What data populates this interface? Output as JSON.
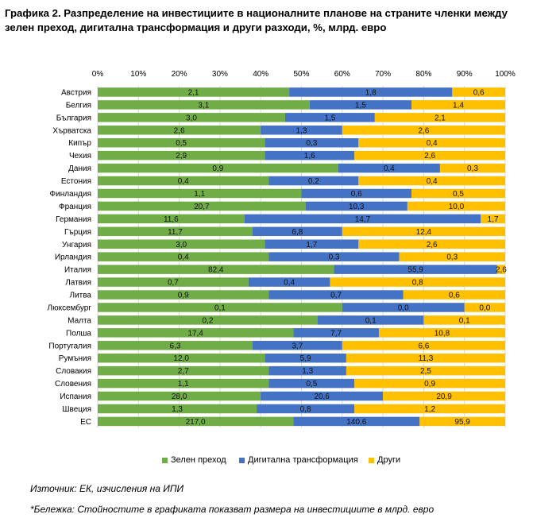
{
  "title": {
    "line1": "Графика 2. Разпределение на инвестициите в националните планове на страните членки между",
    "line2": "зелен преход, дигитална трансформация и други разходи, %, млрд. евро"
  },
  "source": "Източник: ЕК, изчисления на ИПИ",
  "note": "*Бележка: Стойностите в графиката показват размера на инвестициите в млрд. евро",
  "colors": {
    "green": "#70ad47",
    "blue": "#4472c4",
    "yellow": "#ffc000",
    "grid": "#d9d9d9"
  },
  "chart_data": {
    "type": "bar",
    "orientation": "horizontal",
    "stacked": "percent",
    "xlim": [
      0,
      100
    ],
    "x_ticks": [
      "0%",
      "10%",
      "20%",
      "30%",
      "40%",
      "50%",
      "60%",
      "70%",
      "80%",
      "90%",
      "100%"
    ],
    "grid": true,
    "legend": "bottom",
    "categories": [
      "Австрия",
      "Белгия",
      "България",
      "Хърватска",
      "Кипър",
      "Чехия",
      "Дания",
      "Естония",
      "Финландия",
      "Франция",
      "Германия",
      "Гърция",
      "Унгария",
      "Ирландия",
      "Италия",
      "Латвия",
      "Литва",
      "Люксембург",
      "Малта",
      "Полша",
      "Португалия",
      "Румъния",
      "Словакия",
      "Словения",
      "Испания",
      "Швеция",
      "ЕС"
    ],
    "series": [
      {
        "name": "Зелен преход",
        "color": "#70ad47",
        "values": [
          2.1,
          3.1,
          3.0,
          2.6,
          0.5,
          2.9,
          0.9,
          0.4,
          1.1,
          20.7,
          11.6,
          11.7,
          3.0,
          0.4,
          82.4,
          0.7,
          0.9,
          0.1,
          0.2,
          17.4,
          6.3,
          12.0,
          2.7,
          1.1,
          28.0,
          1.3,
          217.0
        ],
        "labels": [
          "2,1",
          "3,1",
          "3,0",
          "2,6",
          "0,5",
          "2,9",
          "0,9",
          "0,4",
          "1,1",
          "20,7",
          "11,6",
          "11,7",
          "3,0",
          "0,4",
          "82,4",
          "0,7",
          "0,9",
          "0,1",
          "0,2",
          "17,4",
          "6,3",
          "12,0",
          "2,7",
          "1,1",
          "28,0",
          "1,3",
          "217,0"
        ],
        "percent": [
          47,
          52,
          46,
          40,
          41,
          41,
          59,
          42,
          50,
          51,
          36,
          38,
          41,
          42,
          58,
          37,
          42,
          60,
          54,
          48,
          38,
          41,
          42,
          42,
          40,
          39,
          48
        ]
      },
      {
        "name": "Дигитална трансформация",
        "color": "#4472c4",
        "values": [
          1.8,
          1.5,
          1.5,
          1.3,
          0.3,
          1.6,
          0.4,
          0.2,
          0.6,
          10.3,
          14.7,
          6.8,
          1.7,
          0.3,
          55.9,
          0.4,
          0.7,
          0.0,
          0.1,
          7.7,
          3.7,
          5.9,
          1.3,
          0.5,
          20.6,
          0.8,
          140.6
        ],
        "labels": [
          "1,8",
          "1,5",
          "1,5",
          "1,3",
          "0,3",
          "1,6",
          "0,4",
          "0,2",
          "0,6",
          "10,3",
          "14,7",
          "6,8",
          "1,7",
          "0,3",
          "55,9",
          "0,4",
          "0,7",
          "0,0",
          "0,1",
          "7,7",
          "3,7",
          "5,9",
          "1,3",
          "0,5",
          "20,6",
          "0,8",
          "140,6"
        ],
        "percent": [
          40,
          25,
          22,
          20,
          23,
          22,
          25,
          22,
          27,
          25,
          58,
          22,
          23,
          32,
          40,
          20,
          33,
          30,
          26,
          21,
          22,
          20,
          19,
          21,
          30,
          24,
          31
        ]
      },
      {
        "name": "Други",
        "color": "#ffc000",
        "values": [
          0.6,
          1.4,
          2.1,
          2.6,
          0.4,
          2.6,
          0.3,
          0.4,
          0.5,
          10.0,
          1.7,
          12.4,
          2.6,
          0.3,
          2.6,
          0.8,
          0.6,
          0.0,
          0.1,
          10.8,
          6.6,
          11.3,
          2.5,
          0.9,
          20.9,
          1.2,
          95.9
        ],
        "labels": [
          "0,6",
          "1,4",
          "2,1",
          "2,6",
          "0,4",
          "2,6",
          "0,3",
          "0,4",
          "0,5",
          "10,0",
          "1,7",
          "12,4",
          "2,6",
          "0,3",
          "2,6",
          "0,8",
          "0,6",
          "0,0",
          "0,1",
          "10,8",
          "6,6",
          "11,3",
          "2,5",
          "0,9",
          "20,9",
          "1,2",
          "95,9"
        ],
        "percent": [
          13,
          23,
          32,
          40,
          36,
          37,
          16,
          36,
          23,
          24,
          6,
          40,
          36,
          26,
          2,
          43,
          25,
          10,
          20,
          31,
          40,
          39,
          39,
          37,
          30,
          37,
          21
        ]
      }
    ]
  }
}
